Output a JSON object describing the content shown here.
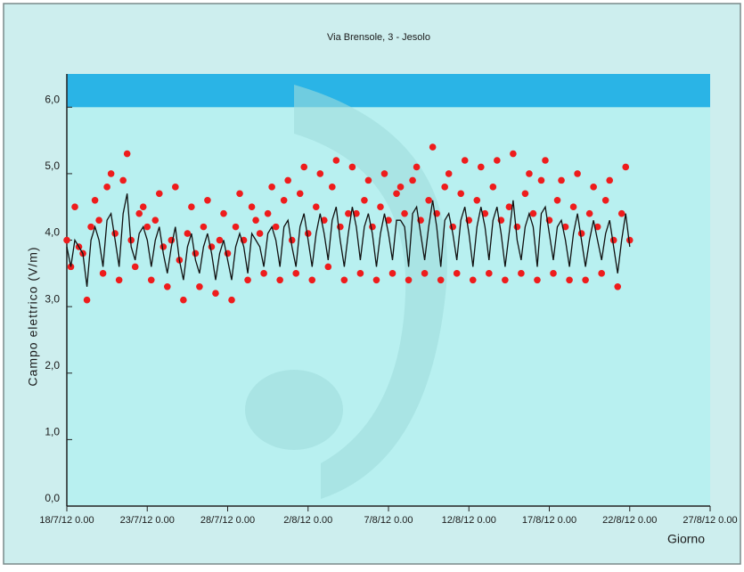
{
  "chart_data": {
    "type": "scatter",
    "title": "Via Brensole, 3 - Jesolo",
    "y_label": "Campo elettrico (V/m)",
    "x_label": "Giorno",
    "xlim": [
      0,
      40
    ],
    "xticks": [
      {
        "value": 0,
        "label": "18/7/12 0.00"
      },
      {
        "value": 5,
        "label": "23/7/12 0.00"
      },
      {
        "value": 10,
        "label": "28/7/12 0.00"
      },
      {
        "value": 15,
        "label": "2/8/12 0.00"
      },
      {
        "value": 20,
        "label": "7/8/12 0.00"
      },
      {
        "value": 25,
        "label": "12/8/12 0.00"
      },
      {
        "value": 30,
        "label": "17/8/12 0.00"
      },
      {
        "value": 35,
        "label": "22/8/12 0.00"
      },
      {
        "value": 40,
        "label": "27/8/12 0.00"
      }
    ],
    "ylim": [
      0,
      6.5
    ],
    "yticks": [
      {
        "value": 0,
        "label": "0,0"
      },
      {
        "value": 1,
        "label": "1,0"
      },
      {
        "value": 2,
        "label": "2,0"
      },
      {
        "value": 3,
        "label": "3,0"
      },
      {
        "value": 4,
        "label": "4,0"
      },
      {
        "value": 5,
        "label": "5,0"
      },
      {
        "value": 6,
        "label": "6,0"
      }
    ],
    "limit_band": [
      6,
      6.5
    ],
    "limit_band_color": "#2ab4e6",
    "plot_background": "#b8f0f0",
    "x": [
      0,
      0.25,
      0.5,
      0.75,
      1,
      1.25,
      1.5,
      1.75,
      2,
      2.25,
      2.5,
      2.75,
      3,
      3.25,
      3.5,
      3.75,
      4,
      4.25,
      4.5,
      4.75,
      5,
      5.25,
      5.5,
      5.75,
      6,
      6.25,
      6.5,
      6.75,
      7,
      7.25,
      7.5,
      7.75,
      8,
      8.25,
      8.5,
      8.75,
      9,
      9.25,
      9.5,
      9.75,
      10,
      10.25,
      10.5,
      10.75,
      11,
      11.25,
      11.5,
      11.75,
      12,
      12.25,
      12.5,
      12.75,
      13,
      13.25,
      13.5,
      13.75,
      14,
      14.25,
      14.5,
      14.75,
      15,
      15.25,
      15.5,
      15.75,
      16,
      16.25,
      16.5,
      16.75,
      17,
      17.25,
      17.5,
      17.75,
      18,
      18.25,
      18.5,
      18.75,
      19,
      19.25,
      19.5,
      19.75,
      20,
      20.25,
      20.5,
      20.75,
      21,
      21.25,
      21.5,
      21.75,
      22,
      22.25,
      22.5,
      22.75,
      23,
      23.25,
      23.5,
      23.75,
      24,
      24.25,
      24.5,
      24.75,
      25,
      25.25,
      25.5,
      25.75,
      26,
      26.25,
      26.5,
      26.75,
      27,
      27.25,
      27.5,
      27.75,
      28,
      28.25,
      28.5,
      28.75,
      29,
      29.25,
      29.5,
      29.75,
      30,
      30.25,
      30.5,
      30.75,
      31,
      31.25,
      31.5,
      31.75,
      32,
      32.25,
      32.5,
      32.75,
      33,
      33.25,
      33.5,
      33.75,
      34,
      34.25,
      34.5,
      34.75,
      35
    ],
    "series": [
      {
        "mode": "line",
        "color": "#111111",
        "values": [
          3.9,
          3.6,
          4.0,
          3.9,
          3.8,
          3.3,
          4.0,
          4.2,
          4.0,
          3.6,
          4.3,
          4.4,
          4.0,
          3.6,
          4.4,
          4.7,
          3.9,
          3.7,
          4.1,
          4.2,
          4.0,
          3.6,
          4.0,
          4.2,
          3.8,
          3.5,
          3.9,
          4.2,
          3.7,
          3.4,
          3.9,
          4.1,
          3.7,
          3.5,
          3.9,
          4.1,
          3.8,
          3.4,
          3.8,
          4.0,
          3.7,
          3.4,
          3.9,
          4.1,
          3.9,
          3.5,
          4.1,
          4.0,
          3.9,
          3.6,
          4.1,
          4.2,
          4.0,
          3.6,
          4.2,
          4.3,
          3.9,
          3.6,
          4.2,
          4.4,
          4.0,
          3.6,
          4.1,
          4.4,
          4.1,
          3.7,
          4.3,
          4.5,
          4.0,
          3.6,
          4.1,
          4.5,
          4.2,
          3.7,
          4.2,
          4.4,
          4.1,
          3.6,
          4.1,
          4.4,
          4.1,
          3.7,
          4.3,
          4.3,
          4.2,
          3.6,
          4.4,
          4.5,
          4.1,
          3.7,
          4.2,
          4.6,
          4.2,
          3.6,
          4.3,
          4.4,
          4.1,
          3.7,
          4.3,
          4.5,
          4.1,
          3.6,
          4.2,
          4.5,
          4.2,
          3.7,
          4.3,
          4.5,
          4.1,
          3.6,
          4.1,
          4.6,
          4.0,
          3.7,
          4.2,
          4.4,
          4.2,
          3.6,
          4.4,
          4.5,
          4.1,
          3.7,
          4.2,
          4.3,
          4.0,
          3.6,
          4.1,
          4.4,
          4.0,
          3.6,
          4.0,
          4.3,
          4.0,
          3.7,
          4.1,
          4.3,
          3.9,
          3.5,
          4.0,
          4.4,
          3.9
        ]
      },
      {
        "mode": "markers",
        "color": "#ee1c1c",
        "values": [
          4.0,
          3.6,
          4.5,
          3.9,
          3.8,
          3.1,
          4.2,
          4.6,
          4.3,
          3.5,
          4.8,
          5.0,
          4.1,
          3.4,
          4.9,
          5.3,
          4.0,
          3.6,
          4.4,
          4.5,
          4.2,
          3.4,
          4.3,
          4.7,
          3.9,
          3.3,
          4.0,
          4.8,
          3.7,
          3.1,
          4.1,
          4.5,
          3.8,
          3.3,
          4.2,
          4.6,
          3.9,
          3.2,
          4.0,
          4.4,
          3.8,
          3.1,
          4.2,
          4.7,
          4.0,
          3.4,
          4.5,
          4.3,
          4.1,
          3.5,
          4.4,
          4.8,
          4.2,
          3.4,
          4.6,
          4.9,
          4.0,
          3.5,
          4.7,
          5.1,
          4.1,
          3.4,
          4.5,
          5.0,
          4.3,
          3.6,
          4.8,
          5.2,
          4.2,
          3.4,
          4.4,
          5.1,
          4.4,
          3.5,
          4.6,
          4.9,
          4.2,
          3.4,
          4.5,
          5.0,
          4.3,
          3.5,
          4.7,
          4.8,
          4.4,
          3.4,
          4.9,
          5.1,
          4.3,
          3.5,
          4.6,
          5.4,
          4.4,
          3.4,
          4.8,
          5.0,
          4.2,
          3.5,
          4.7,
          5.2,
          4.3,
          3.4,
          4.6,
          5.1,
          4.4,
          3.5,
          4.8,
          5.2,
          4.3,
          3.4,
          4.5,
          5.3,
          4.2,
          3.5,
          4.7,
          5.0,
          4.4,
          3.4,
          4.9,
          5.2,
          4.3,
          3.5,
          4.6,
          4.9,
          4.2,
          3.4,
          4.5,
          5.0,
          4.1,
          3.4,
          4.4,
          4.8,
          4.2,
          3.5,
          4.6,
          4.9,
          4.0,
          3.3,
          4.4,
          5.1,
          4.0
        ]
      }
    ]
  }
}
